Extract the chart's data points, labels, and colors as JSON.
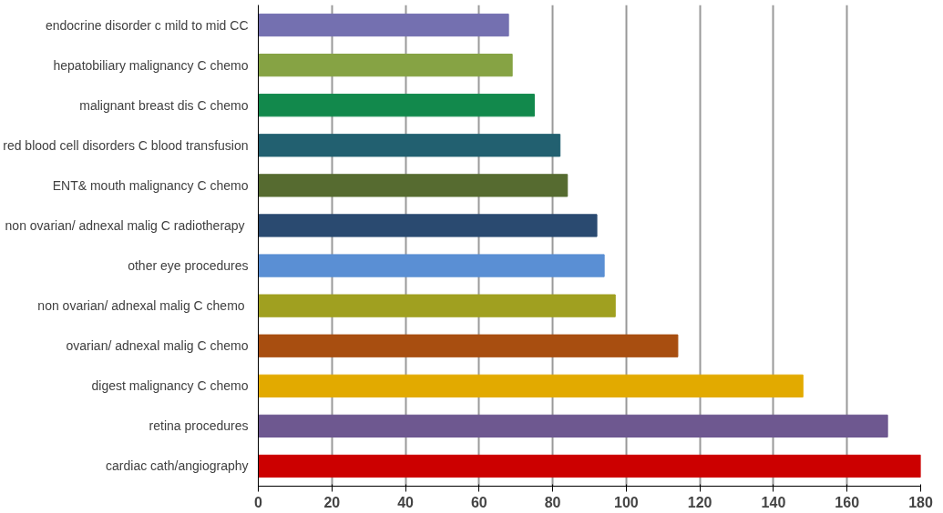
{
  "chart_data": {
    "type": "bar",
    "orientation": "horizontal",
    "categories": [
      "endocrine disorder c mild to mid CC",
      "hepatobiliary malignancy C chemo",
      "malignant breast dis C chemo",
      "red blood cell disorders C blood transfusion",
      "ENT& mouth malignancy C chemo",
      "non  ovarian/ adnexal malig C radiotherapy",
      "other eye procedures",
      "non  ovarian/ adnexal malig C chemo",
      "ovarian/ adnexal malig C chemo",
      "digest malignancy C chemo",
      "retina procedures",
      "cardiac cath/angiography"
    ],
    "values": [
      68,
      69,
      75,
      82,
      84,
      92,
      94,
      97,
      114,
      148,
      171,
      180
    ],
    "colors": [
      "#7470b0",
      "#86a344",
      "#12894c",
      "#226070",
      "#566b30",
      "#2a4a70",
      "#5a8fd4",
      "#a0a020",
      "#a84e10",
      "#e2aa00",
      "#6e5890",
      "#cc0000"
    ],
    "xlim": [
      0,
      180
    ],
    "xticks": [
      0,
      20,
      40,
      60,
      80,
      100,
      120,
      140,
      160,
      180
    ],
    "grid": "x"
  }
}
